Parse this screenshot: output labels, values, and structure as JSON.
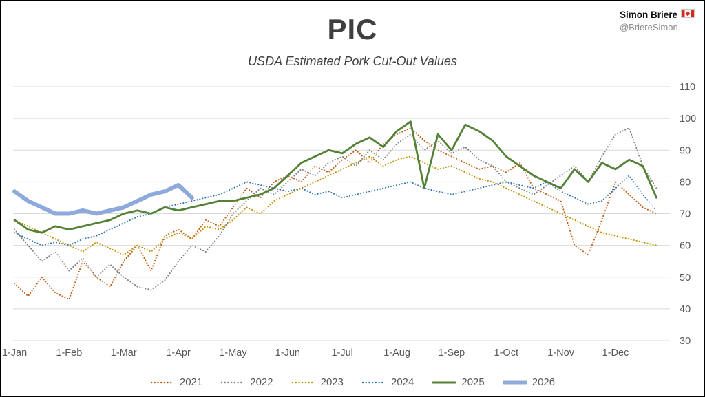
{
  "header": {
    "title": "PIC",
    "subtitle": "USDA Estimated Pork Cut-Out Values",
    "author": "Simon Briere",
    "handle": "@BriereSimon"
  },
  "chart_data": {
    "type": "line",
    "title": "PIC",
    "subtitle": "USDA Estimated Pork Cut-Out Values",
    "xlabel": "",
    "ylabel": "",
    "ylim": [
      30,
      110
    ],
    "y_ticks": [
      30,
      40,
      50,
      60,
      70,
      80,
      90,
      100,
      110
    ],
    "x_tick_labels": [
      "1-Jan",
      "1-Feb",
      "1-Mar",
      "1-Apr",
      "1-May",
      "1-Jun",
      "1-Jul",
      "1-Aug",
      "1-Sep",
      "1-Oct",
      "1-Nov",
      "1-Dec"
    ],
    "grid": "horizontal",
    "legend_position": "bottom",
    "points_per_month": 4,
    "series": [
      {
        "name": "2021",
        "color": "#C55A11",
        "style": "dotted",
        "width": 2,
        "values": [
          48,
          44,
          50,
          45,
          43,
          55,
          50,
          47,
          55,
          60,
          52,
          63,
          65,
          62,
          68,
          66,
          72,
          78,
          75,
          80,
          82,
          80,
          85,
          83,
          87,
          90,
          86,
          92,
          95,
          97,
          93,
          90,
          88,
          86,
          84,
          85,
          83,
          86,
          78,
          76,
          74,
          60,
          57,
          68,
          80,
          76,
          72,
          70
        ]
      },
      {
        "name": "2022",
        "color": "#7F7F7F",
        "style": "dotted",
        "width": 2,
        "values": [
          65,
          60,
          55,
          58,
          52,
          56,
          50,
          54,
          50,
          47,
          46,
          49,
          55,
          60,
          58,
          63,
          70,
          74,
          78,
          76,
          80,
          84,
          82,
          86,
          88,
          85,
          90,
          87,
          92,
          95,
          90,
          93,
          89,
          91,
          87,
          85,
          80,
          78,
          76,
          79,
          82,
          85,
          80,
          88,
          95,
          97,
          85,
          78
        ]
      },
      {
        "name": "2023",
        "color": "#BF8F00",
        "style": "dotted",
        "width": 2,
        "values": [
          68,
          66,
          64,
          62,
          60,
          58,
          61,
          59,
          57,
          60,
          58,
          62,
          64,
          62,
          66,
          65,
          68,
          72,
          70,
          74,
          76,
          78,
          80,
          82,
          84,
          86,
          88,
          85,
          87,
          88,
          86,
          84,
          85,
          83,
          81,
          80,
          78,
          76,
          74,
          72,
          70,
          68,
          66,
          64,
          63,
          62,
          61,
          60
        ]
      },
      {
        "name": "2024",
        "color": "#2E75B6",
        "style": "dotted",
        "width": 2,
        "values": [
          64,
          62,
          60,
          61,
          60,
          62,
          63,
          65,
          67,
          69,
          70,
          72,
          73,
          74,
          75,
          76,
          78,
          80,
          79,
          78,
          77,
          78,
          76,
          77,
          75,
          76,
          77,
          78,
          79,
          80,
          78,
          77,
          76,
          77,
          78,
          79,
          80,
          79,
          78,
          80,
          77,
          75,
          73,
          74,
          78,
          82,
          76,
          71
        ]
      },
      {
        "name": "2025",
        "color": "#538135",
        "style": "solid",
        "width": 2.8,
        "values": [
          68,
          65,
          64,
          66,
          65,
          66,
          67,
          68,
          70,
          71,
          70,
          72,
          71,
          72,
          73,
          74,
          74,
          75,
          76,
          78,
          82,
          86,
          88,
          90,
          89,
          92,
          94,
          91,
          96,
          99,
          78,
          95,
          90,
          98,
          96,
          93,
          88,
          85,
          82,
          80,
          78,
          84,
          80,
          86,
          84,
          87,
          85,
          75
        ]
      },
      {
        "name": "2026",
        "color": "#8EAADB",
        "style": "solid",
        "width": 6,
        "values": [
          77,
          74,
          72,
          70,
          70,
          71,
          70,
          71,
          72,
          74,
          76,
          77,
          79,
          75
        ]
      }
    ]
  }
}
